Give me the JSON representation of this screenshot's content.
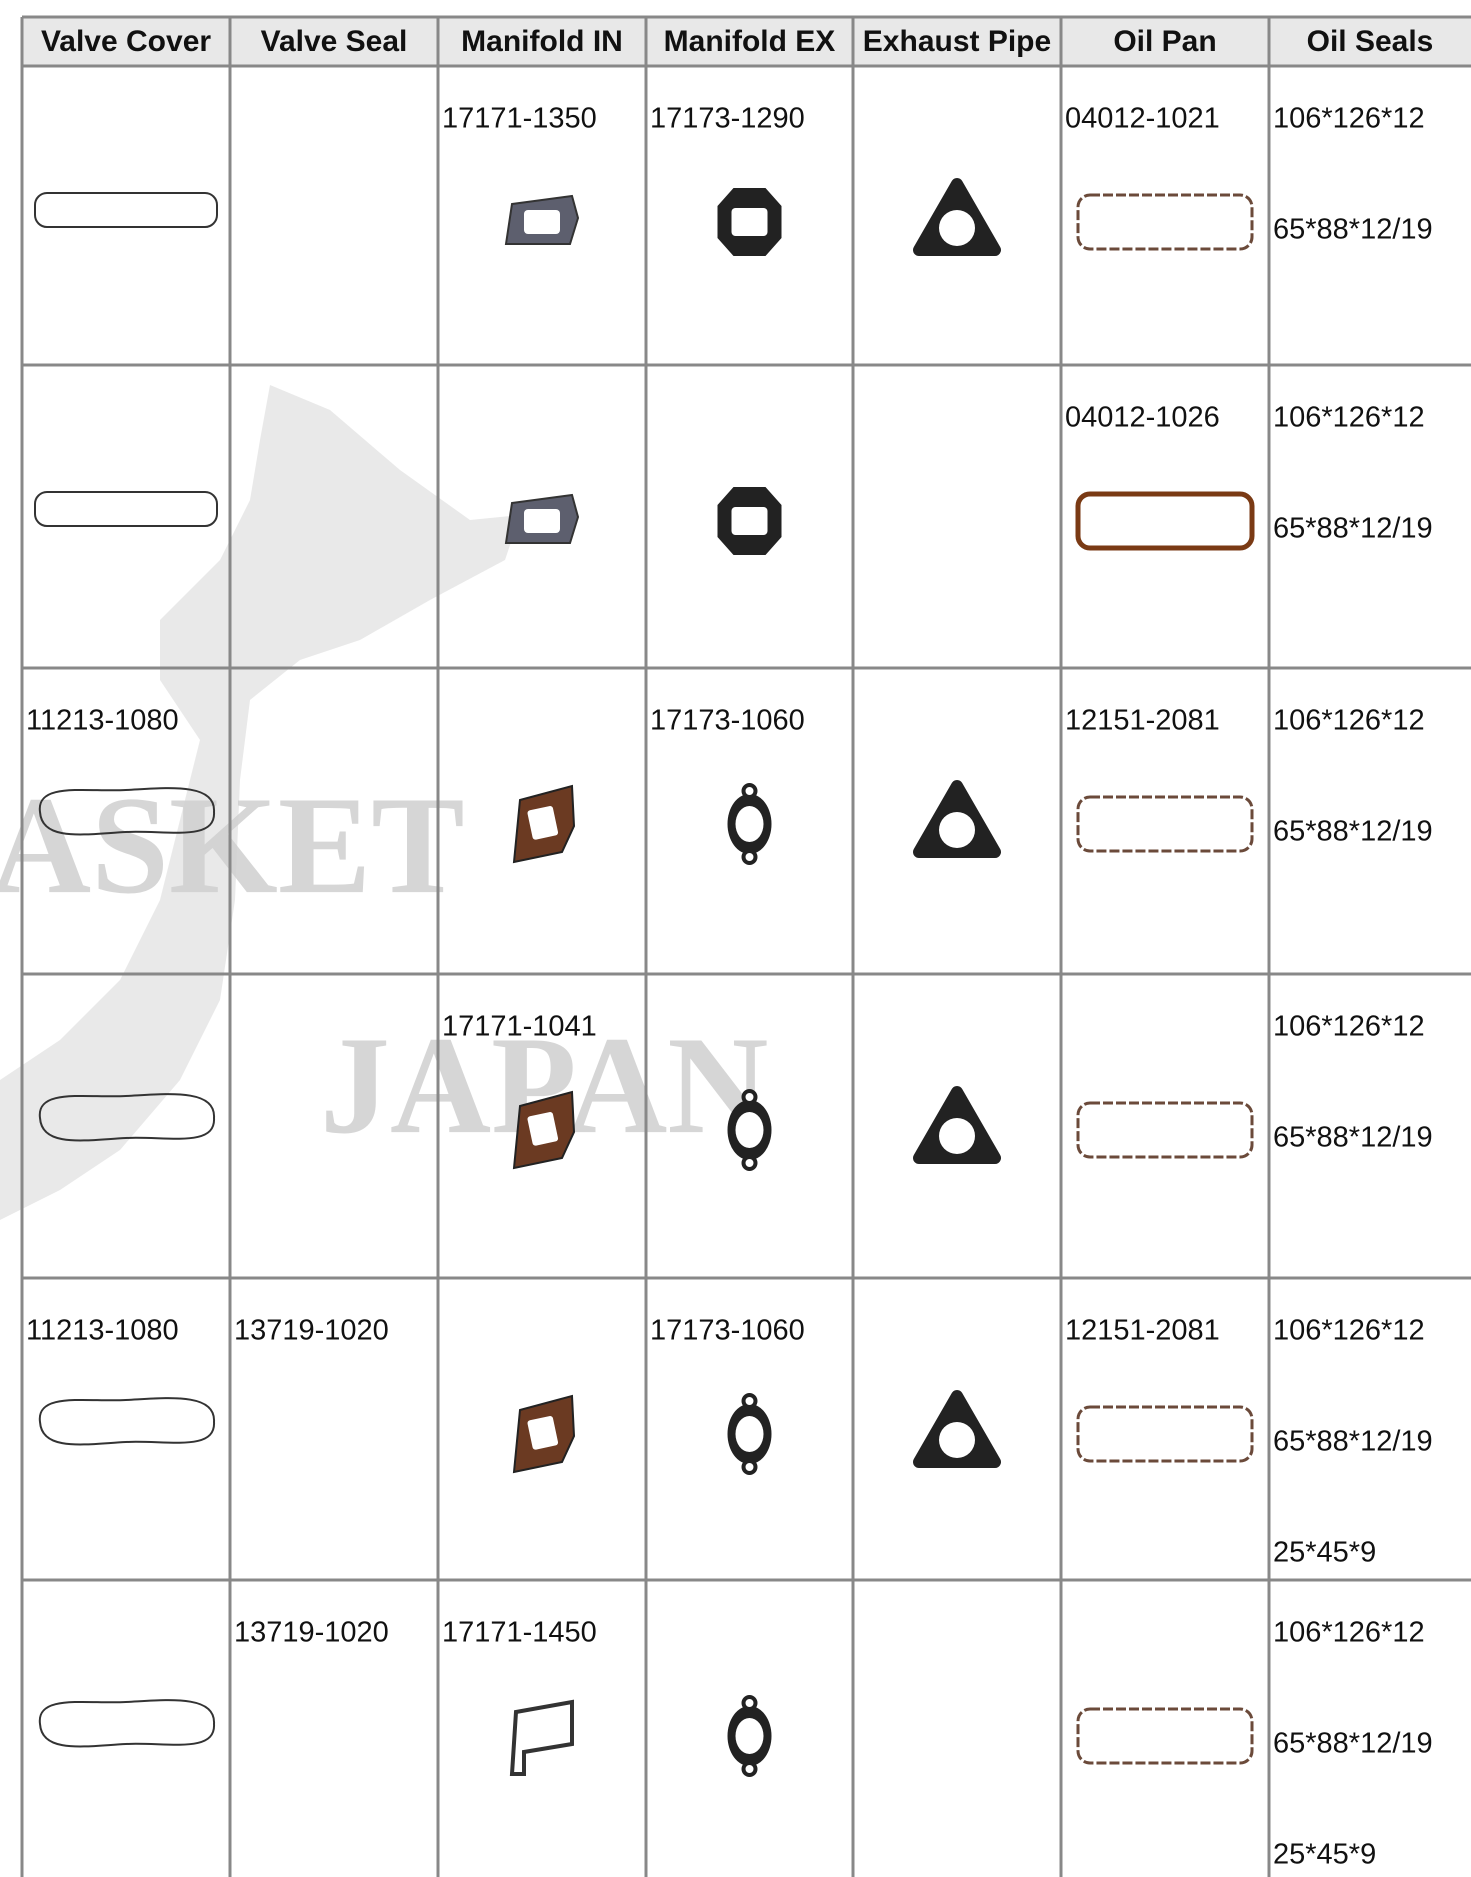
{
  "watermark": [
    "ASKET",
    "JAPAN"
  ],
  "table": {
    "headers": [
      "Valve Cover",
      "Valve Seal",
      "Manifold IN",
      "Manifold EX",
      "Exhaust Pipe",
      "Oil Pan",
      "Oil Seals"
    ],
    "rows": [
      [
        [],
        [],
        [
          "17171-1350"
        ],
        [
          "17173-1290"
        ],
        [],
        [
          "04012-1021"
        ],
        [
          "106*126*12",
          "65*88*12/19"
        ]
      ],
      [
        [],
        [],
        [],
        [],
        [],
        [
          "04012-1026"
        ],
        [
          "106*126*12",
          "65*88*12/19"
        ]
      ],
      [
        [
          "11213-1080"
        ],
        [],
        [],
        [
          "17173-1060"
        ],
        [],
        [
          "12151-2081"
        ],
        [
          "106*126*12",
          "65*88*12/19"
        ]
      ],
      [
        [],
        [],
        [
          "17171-1041"
        ],
        [],
        [],
        [],
        [
          "106*126*12",
          "65*88*12/19"
        ]
      ],
      [
        [
          "11213-1080"
        ],
        [
          "13719-1020"
        ],
        [],
        [
          "17173-1060"
        ],
        [],
        [
          "12151-2081"
        ],
        [
          "106*126*12",
          "65*88*12/19",
          "25*45*9"
        ]
      ],
      [
        [],
        [
          "13719-1020"
        ],
        [
          "17171-1450"
        ],
        [],
        [],
        [],
        [
          "106*126*12",
          "65*88*12/19",
          "25*45*9"
        ]
      ]
    ]
  }
}
